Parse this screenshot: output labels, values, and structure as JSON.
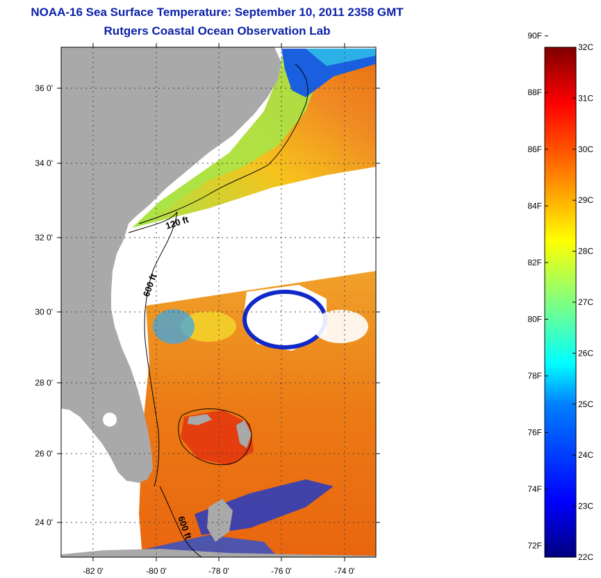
{
  "header": {
    "title": "NOAA-16 Sea Surface Temperature:  September 10, 2011 2358 GMT",
    "subtitle": "Rutgers Coastal Ocean Observation Lab"
  },
  "map": {
    "lat_labels": [
      "36 0'",
      "34 0'",
      "32 0'",
      "30 0'",
      "28 0'",
      "26 0'",
      "24 0'"
    ],
    "lon_labels": [
      "-82 0'",
      "-80 0'",
      "-78 0'",
      "-76 0'",
      "-74 0'"
    ],
    "contour_labels": [
      "120 ft",
      "600 ft",
      "600 ft"
    ],
    "lat_range": [
      23,
      37.1
    ],
    "lon_range": [
      -83,
      -73
    ]
  },
  "colorbar": {
    "fahrenheit_labels": [
      "90F",
      "88F",
      "86F",
      "84F",
      "82F",
      "80F",
      "78F",
      "76F",
      "74F",
      "72F"
    ],
    "celsius_labels": [
      "32C",
      "31C",
      "30C",
      "29C",
      "28C",
      "27C",
      "26C",
      "25C",
      "24C",
      "23C",
      "22C"
    ],
    "range_c": [
      22,
      32
    ]
  },
  "colors": {
    "title": "#0a1fa8",
    "land": "#a9a9a9",
    "no_data": "#ffffff",
    "warm": "#e8620e",
    "mid": "#f2e41a",
    "cool": "#1437d6"
  }
}
